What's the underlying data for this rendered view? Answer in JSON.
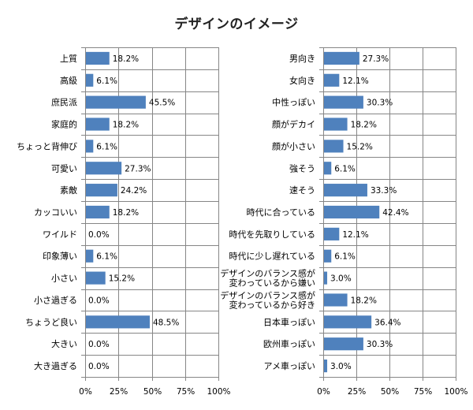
{
  "chart_data": [
    {
      "type": "bar",
      "orientation": "horizontal",
      "title": "デザインのイメージ",
      "xlabel": "",
      "ylabel": "",
      "xlim": [
        0,
        100
      ],
      "grid": true,
      "x_ticks": [
        "0%",
        "25%",
        "50%",
        "75%",
        "100%"
      ],
      "categories": [
        "上質",
        "高級",
        "庶民派",
        "家庭的",
        "ちょっと背伸び",
        "可愛い",
        "素敵",
        "カッコいい",
        "ワイルド",
        "印象薄い",
        "小さい",
        "小さ過ぎる",
        "ちょうど良い",
        "大きい",
        "大き過ぎる"
      ],
      "values": [
        18.2,
        6.1,
        45.5,
        18.2,
        6.1,
        27.3,
        24.2,
        18.2,
        0.0,
        6.1,
        15.2,
        0.0,
        48.5,
        0.0,
        0.0
      ],
      "labels": [
        "18.2%",
        "6.1%",
        "45.5%",
        "18.2%",
        "6.1%",
        "27.3%",
        "24.2%",
        "18.2%",
        "0.0%",
        "6.1%",
        "15.2%",
        "0.0%",
        "48.5%",
        "0.0%",
        "0.0%"
      ]
    },
    {
      "type": "bar",
      "orientation": "horizontal",
      "title": "",
      "xlabel": "",
      "ylabel": "",
      "xlim": [
        0,
        100
      ],
      "grid": true,
      "x_ticks": [
        "0%",
        "25%",
        "50%",
        "75%",
        "100%"
      ],
      "categories": [
        "男向き",
        "女向き",
        "中性っぽい",
        "顔がデカイ",
        "顔が小さい",
        "強そう",
        "速そう",
        "時代に合っている",
        "時代を先取りしている",
        "時代に少し遅れている",
        "デザインのバランス感が\n変わっているから嫌い",
        "デザインのバランス感が\n変わっているから好き",
        "日本車っぽい",
        "欧州車っぽい",
        "アメ車っぽい"
      ],
      "values": [
        27.3,
        12.1,
        30.3,
        18.2,
        15.2,
        6.1,
        33.3,
        42.4,
        12.1,
        6.1,
        3.0,
        18.2,
        36.4,
        30.3,
        3.0
      ],
      "labels": [
        "27.3%",
        "12.1%",
        "30.3%",
        "18.2%",
        "15.2%",
        "6.1%",
        "33.3%",
        "42.4%",
        "12.1%",
        "6.1%",
        "3.0%",
        "18.2%",
        "36.4%",
        "30.3%",
        "3.0%"
      ]
    }
  ],
  "colors": {
    "bar": "#4f81bd",
    "grid": "#868686",
    "text": "#000000"
  }
}
